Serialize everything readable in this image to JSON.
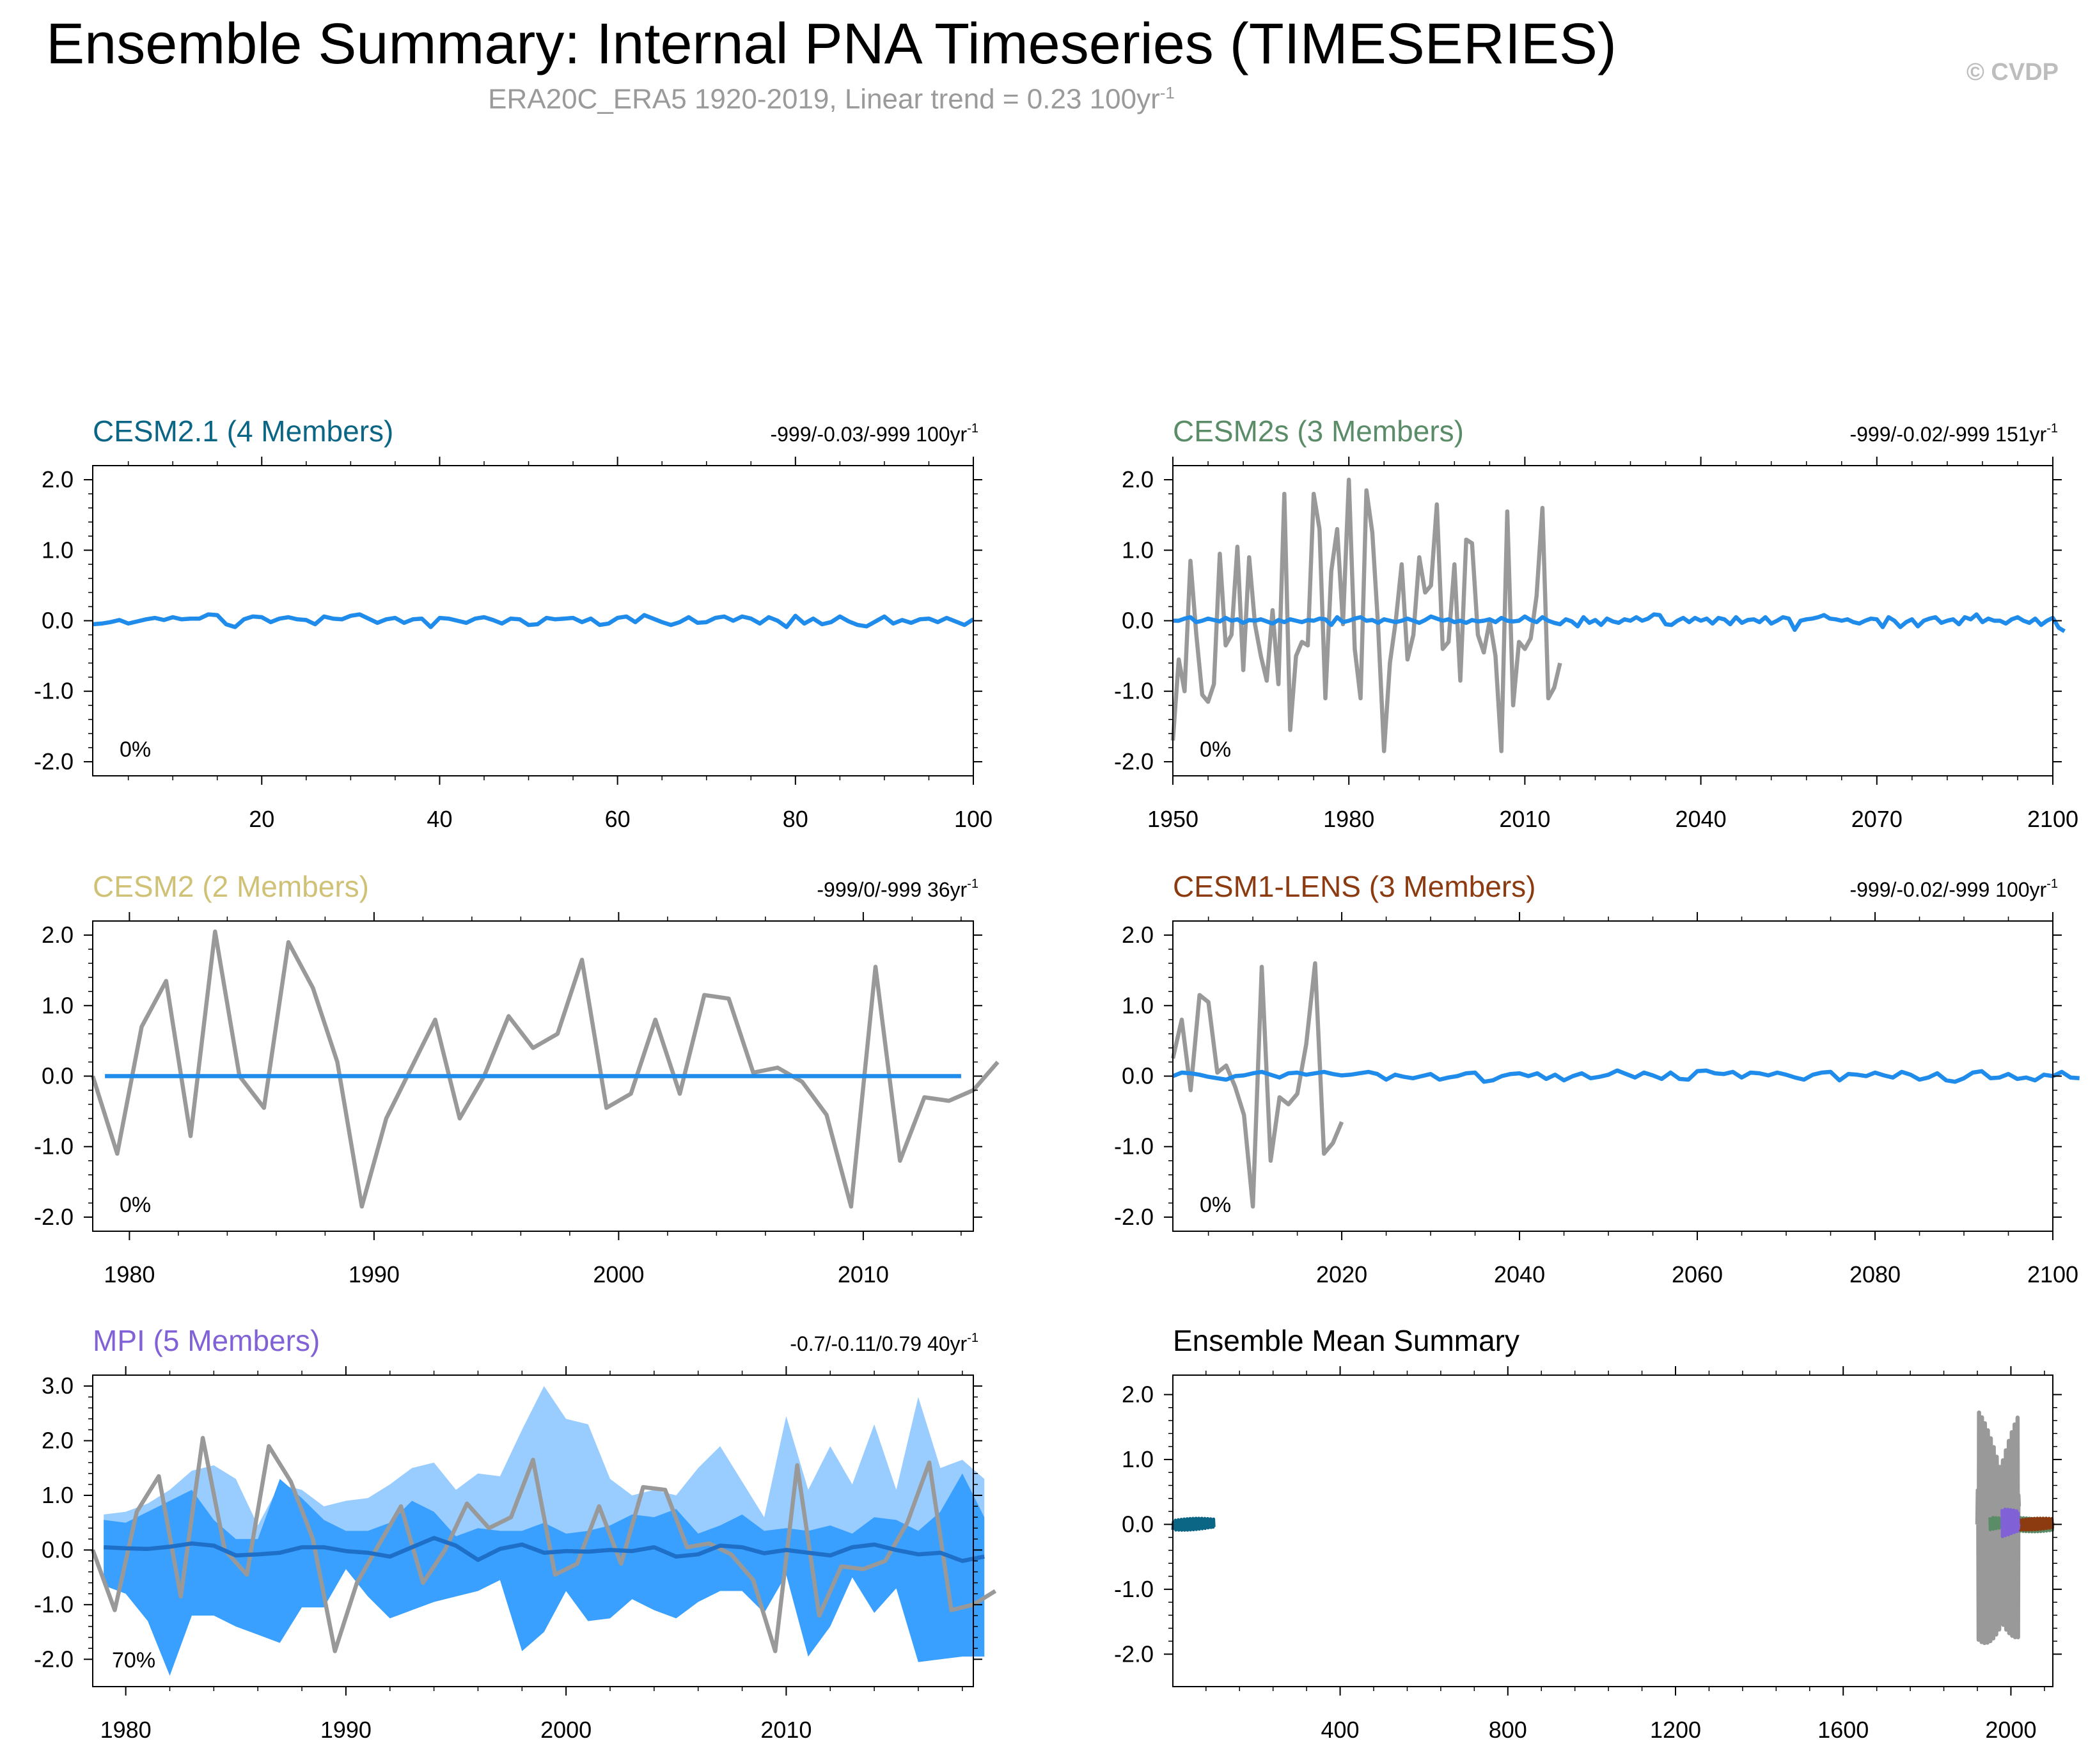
{
  "header": {
    "title": "Ensemble Summary: Internal PNA Timeseries (TIMESERIES)",
    "subtitle": "ERA20C_ERA5 1920-2019, Linear trend = 0.23 100yr",
    "subtitle_sup": "-1",
    "copyright": "© CVDP"
  },
  "colors": {
    "obs": "#999999",
    "ens_mean": "#1f8bea",
    "ens_mean_dark": "#1e6fc8",
    "band_outer": "#99ccff",
    "band_inner": "#3aa0ff",
    "cesm21": "#0b6584",
    "cesm2s": "#5b8c68",
    "cesm2": "#cfc277",
    "cesm1": "#8c3b10",
    "mpi": "#8062d6"
  },
  "chart_data": [
    {
      "type": "line",
      "panel": "CESM2.1",
      "title": "CESM2.1 (4 Members)",
      "stats": "-999/-0.03/-999 100yr",
      "stats_sup": "-1",
      "percent": "0%",
      "xlim": [
        1,
        100
      ],
      "ylim": [
        -2.2,
        2.2
      ],
      "xticks": [
        20,
        40,
        60,
        80,
        100
      ],
      "xtick_labels": [
        "20",
        "40",
        "60",
        "80",
        "100"
      ],
      "yticks": [
        2.0,
        1.0,
        0.0,
        -1.0,
        -2.0
      ],
      "ytick_labels": [
        "2.0",
        "1.0",
        "0.0",
        "-1.0",
        "-2.0"
      ],
      "series": [
        {
          "name": "ensemble mean",
          "color_key": "ens_mean",
          "x_start": 1,
          "x_step": 1,
          "values": [
            -0.05,
            -0.04,
            -0.02,
            0.01,
            -0.04,
            -0.01,
            0.02,
            0.04,
            0.01,
            0.05,
            0.02,
            0.03,
            0.03,
            0.09,
            0.08,
            -0.05,
            -0.09,
            0.02,
            0.06,
            0.05,
            -0.02,
            0.03,
            0.05,
            0.02,
            0.01,
            -0.05,
            0.06,
            0.03,
            0.02,
            0.07,
            0.09,
            0.03,
            -0.03,
            0.02,
            0.04,
            -0.03,
            0.02,
            0.03,
            -0.09,
            0.04,
            0.03,
            0.0,
            -0.03,
            0.03,
            0.05,
            0.01,
            -0.04,
            0.03,
            0.02,
            -0.06,
            -0.05,
            0.04,
            0.02,
            0.03,
            0.04,
            -0.02,
            0.03,
            -0.06,
            -0.04,
            0.04,
            0.06,
            -0.02,
            0.08,
            0.03,
            -0.02,
            -0.06,
            -0.02,
            0.05,
            -0.03,
            -0.02,
            0.04,
            0.06,
            0.0,
            0.06,
            0.03,
            -0.04,
            0.05,
            0.0,
            -0.09,
            0.07,
            -0.04,
            0.03,
            -0.05,
            -0.02,
            0.06,
            -0.01,
            -0.06,
            -0.08,
            -0.01,
            0.06,
            -0.04,
            0.01,
            -0.03,
            0.02,
            0.03,
            -0.02,
            0.04,
            -0.01,
            -0.06,
            0.02
          ]
        }
      ]
    },
    {
      "type": "line",
      "panel": "CESM2s",
      "title": "CESM2s (3 Members)",
      "stats": "-999/-0.02/-999 151yr",
      "stats_sup": "-1",
      "percent": "0%",
      "xlim": [
        1950,
        2100
      ],
      "ylim": [
        -2.2,
        2.2
      ],
      "xticks": [
        1950,
        1980,
        2010,
        2040,
        2070,
        2100
      ],
      "xtick_labels": [
        "1950",
        "1980",
        "2010",
        "2040",
        "2070",
        "2100"
      ],
      "yticks": [
        2.0,
        1.0,
        0.0,
        -1.0,
        -2.0
      ],
      "ytick_labels": [
        "2.0",
        "1.0",
        "0.0",
        "-1.0",
        "-2.0"
      ],
      "series": [
        {
          "name": "observations",
          "color_key": "obs",
          "x_start": 1950,
          "x_step": 1,
          "values": [
            -1.7,
            -0.55,
            -1.0,
            0.85,
            -0.2,
            -1.05,
            -1.15,
            -0.9,
            0.95,
            -0.35,
            -0.2,
            1.05,
            -0.7,
            0.9,
            -0.05,
            -0.5,
            -0.85,
            0.15,
            -0.9,
            1.8,
            -1.55,
            -0.5,
            -0.3,
            -0.35,
            1.8,
            1.3,
            -1.1,
            0.7,
            1.3,
            -0.05,
            2.0,
            -0.4,
            -1.1,
            1.85,
            1.25,
            -0.1,
            -1.85,
            -0.6,
            0.0,
            0.8,
            -0.55,
            -0.2,
            0.9,
            0.4,
            0.5,
            1.65,
            -0.4,
            -0.3,
            0.8,
            -0.85,
            1.15,
            1.1,
            -0.2,
            -0.45,
            0.0,
            -0.5,
            -1.85,
            1.55,
            -1.2,
            -0.3,
            -0.4,
            -0.25,
            0.35,
            1.6,
            -1.1,
            -0.95,
            -0.6
          ]
        },
        {
          "name": "ensemble mean",
          "color_key": "ens_mean",
          "x_start": 1950,
          "x_step": 1,
          "values": [
            0.0,
            0.0,
            0.03,
            0.05,
            -0.02,
            0.0,
            0.03,
            0.01,
            -0.01,
            0.04,
            0.0,
            0.02,
            -0.03,
            0.01,
            0.0,
            0.02,
            -0.01,
            -0.04,
            0.01,
            -0.02,
            0.02,
            0.0,
            -0.02,
            0.01,
            0.0,
            0.03,
            0.02,
            -0.06,
            0.05,
            -0.02,
            0.0,
            0.03,
            0.05,
            0.0,
            0.01,
            -0.03,
            0.02,
            0.0,
            -0.02,
            0.0,
            0.03,
            0.0,
            -0.03,
            0.01,
            0.06,
            0.03,
            0.0,
            0.02,
            -0.02,
            0.0,
            -0.03,
            0.01,
            -0.01,
            0.0,
            0.02,
            -0.02,
            0.04,
            0.0,
            -0.01,
            0.0,
            0.06,
            0.01,
            -0.02,
            0.05,
            0.0,
            -0.03,
            -0.05,
            0.02,
            -0.01,
            -0.08,
            0.05,
            -0.03,
            0.01,
            -0.06,
            0.03,
            -0.01,
            -0.03,
            0.02,
            0.0,
            0.05,
            0.0,
            0.03,
            0.09,
            0.08,
            -0.05,
            -0.06,
            0.0,
            0.04,
            -0.02,
            0.04,
            0.0,
            0.03,
            -0.04,
            0.04,
            0.02,
            -0.05,
            0.05,
            -0.03,
            0.01,
            0.02,
            -0.02,
            0.05,
            -0.04,
            0.0,
            0.05,
            0.03,
            -0.13,
            0.0,
            0.02,
            0.03,
            0.05,
            0.08,
            0.03,
            0.02,
            0.0,
            0.02,
            -0.02,
            -0.04,
            0.0,
            0.03,
            0.02,
            -0.09,
            0.05,
            0.0,
            -0.09,
            -0.02,
            0.02,
            -0.08,
            0.0,
            0.03,
            0.05,
            -0.03,
            0.0,
            0.02,
            -0.05,
            0.05,
            0.02,
            0.09,
            -0.02,
            0.03,
            0.0,
            0.0,
            -0.04,
            0.02,
            0.05,
            0.0,
            -0.03,
            0.03,
            -0.06,
            0.0,
            0.04,
            -0.1,
            -0.15
          ]
        }
      ]
    },
    {
      "type": "line",
      "panel": "CESM2",
      "title": "CESM2 (2 Members)",
      "stats": "-999/0/-999 36yr",
      "stats_sup": "-1",
      "percent": "0%",
      "xlim": [
        1978.5,
        2014.5
      ],
      "ylim": [
        -2.2,
        2.2
      ],
      "xticks": [
        1980,
        1990,
        2000,
        2010
      ],
      "xtick_labels": [
        "1980",
        "1990",
        "2000",
        "2010"
      ],
      "yticks": [
        2.0,
        1.0,
        0.0,
        -1.0,
        -2.0
      ],
      "ytick_labels": [
        "2.0",
        "1.0",
        "0.0",
        "-1.0",
        "-2.0"
      ],
      "series": [
        {
          "name": "observations",
          "color_key": "obs",
          "x_start": 1978.5,
          "x_step": 1,
          "values": [
            0.0,
            -1.1,
            0.7,
            1.35,
            -0.85,
            2.05,
            0.0,
            -0.45,
            1.9,
            1.25,
            0.2,
            -1.85,
            -0.6,
            0.1,
            0.8,
            -0.6,
            0.0,
            0.85,
            0.4,
            0.6,
            1.65,
            -0.45,
            -0.25,
            0.8,
            -0.25,
            1.15,
            1.1,
            0.05,
            0.12,
            -0.08,
            -0.55,
            -1.85,
            1.55,
            -1.2,
            -0.3,
            -0.35,
            -0.2,
            0.2
          ]
        },
        {
          "name": "ensemble mean",
          "color_key": "ens_mean",
          "x_start": 1979,
          "x_step": 1,
          "values": [
            0.0,
            0.0,
            0.0,
            0.0,
            0.0,
            0.0,
            0.0,
            0.0,
            0.0,
            0.0,
            0.0,
            0.0,
            0.0,
            0.0,
            0.0,
            0.0,
            0.0,
            0.0,
            0.0,
            0.0,
            0.0,
            0.0,
            0.0,
            0.0,
            0.0,
            0.0,
            0.0,
            0.0,
            0.0,
            0.0,
            0.0,
            0.0,
            0.0,
            0.0,
            0.0,
            0.0
          ]
        }
      ]
    },
    {
      "type": "line",
      "panel": "CESM1-LENS",
      "title": "CESM1-LENS (3 Members)",
      "stats": "-999/-0.02/-999 100yr",
      "stats_sup": "-1",
      "percent": "0%",
      "xlim": [
        2001,
        2100
      ],
      "ylim": [
        -2.2,
        2.2
      ],
      "xticks": [
        2020,
        2040,
        2060,
        2080,
        2100
      ],
      "xtick_labels": [
        "2020",
        "2040",
        "2060",
        "2080",
        "2100"
      ],
      "yticks": [
        2.0,
        1.0,
        0.0,
        -1.0,
        -2.0
      ],
      "ytick_labels": [
        "2.0",
        "1.0",
        "0.0",
        "-1.0",
        "-2.0"
      ],
      "series": [
        {
          "name": "observations",
          "color_key": "obs",
          "x_start": 2001,
          "x_step": 1,
          "values": [
            0.25,
            0.8,
            -0.2,
            1.15,
            1.05,
            0.05,
            0.15,
            -0.15,
            -0.55,
            -1.85,
            1.55,
            -1.2,
            -0.3,
            -0.4,
            -0.25,
            0.45,
            1.6,
            -1.1,
            -0.95,
            -0.65
          ]
        },
        {
          "name": "ensemble mean",
          "color_key": "ens_mean",
          "x_start": 2001,
          "x_step": 1,
          "values": [
            0.0,
            0.05,
            0.04,
            0.02,
            -0.01,
            -0.03,
            -0.05,
            0.0,
            0.01,
            0.04,
            0.06,
            0.02,
            -0.02,
            0.04,
            0.05,
            0.02,
            0.04,
            0.06,
            0.03,
            0.01,
            0.02,
            0.04,
            0.06,
            0.03,
            -0.05,
            0.02,
            -0.01,
            -0.03,
            0.0,
            0.03,
            -0.05,
            -0.02,
            0.0,
            0.04,
            0.05,
            -0.08,
            -0.06,
            0.0,
            0.03,
            0.04,
            0.0,
            0.04,
            -0.04,
            0.02,
            -0.06,
            0.0,
            0.04,
            -0.03,
            -0.01,
            0.02,
            0.08,
            0.03,
            -0.02,
            0.05,
            0.01,
            -0.04,
            0.05,
            -0.04,
            -0.05,
            0.07,
            0.08,
            0.04,
            0.03,
            0.06,
            -0.02,
            0.05,
            0.04,
            0.01,
            0.05,
            0.02,
            -0.02,
            -0.05,
            0.02,
            0.05,
            0.06,
            -0.06,
            0.03,
            0.02,
            0.0,
            0.05,
            0.01,
            -0.02,
            0.06,
            0.02,
            -0.05,
            -0.02,
            0.04,
            -0.06,
            -0.08,
            -0.03,
            0.05,
            0.07,
            -0.03,
            -0.02,
            0.03,
            -0.04,
            -0.02,
            -0.06,
            0.02,
            0.0,
            0.06,
            -0.02,
            -0.03
          ]
        }
      ]
    },
    {
      "type": "area",
      "panel": "MPI",
      "title": "MPI (5 Members)",
      "stats": "-0.7/-0.11/0.79 40yr",
      "stats_sup": "-1",
      "percent": "70%",
      "xlim": [
        1978.5,
        2018.5
      ],
      "ylim": [
        -2.5,
        3.2
      ],
      "xticks": [
        1980,
        1990,
        2000,
        2010
      ],
      "xtick_labels": [
        "1980",
        "1990",
        "2000",
        "2010"
      ],
      "yticks": [
        3.0,
        2.0,
        1.0,
        0.0,
        -1.0,
        -2.0
      ],
      "ytick_labels": [
        "3.0",
        "2.0",
        "1.0",
        "0.0",
        "-1.0",
        "-2.0"
      ],
      "band_x_start": 1979,
      "band_outer_max": [
        0.65,
        0.7,
        0.85,
        1.1,
        1.45,
        1.55,
        1.3,
        0.45,
        1.2,
        1.1,
        0.8,
        0.9,
        0.95,
        1.2,
        1.5,
        1.6,
        1.1,
        1.4,
        1.35,
        2.2,
        3.0,
        2.4,
        2.3,
        1.3,
        1.0,
        1.1,
        1.0,
        1.5,
        1.9,
        1.25,
        0.6,
        2.45,
        1.1,
        1.9,
        1.2,
        2.3,
        1.1,
        2.8,
        1.5,
        1.65,
        1.3
      ],
      "band_inner_max": [
        0.55,
        0.5,
        0.7,
        0.9,
        1.1,
        0.55,
        0.2,
        0.2,
        1.3,
        0.95,
        0.55,
        0.35,
        0.35,
        0.5,
        0.9,
        0.7,
        0.25,
        0.4,
        0.35,
        0.35,
        0.5,
        0.3,
        0.35,
        0.45,
        0.65,
        0.6,
        0.75,
        0.3,
        0.45,
        0.65,
        0.35,
        0.4,
        0.35,
        0.45,
        0.3,
        0.6,
        0.55,
        0.35,
        0.7,
        1.4,
        0.6
      ],
      "band_inner_min": [
        -0.65,
        -0.8,
        -1.3,
        -2.3,
        -1.2,
        -1.2,
        -1.4,
        -1.55,
        -1.7,
        -1.05,
        -1.05,
        -0.35,
        -0.85,
        -1.25,
        -1.1,
        -0.95,
        -0.85,
        -0.75,
        -0.55,
        -1.85,
        -1.5,
        -0.75,
        -1.3,
        -1.25,
        -0.9,
        -1.1,
        -1.25,
        -0.95,
        -0.75,
        -0.75,
        -1.15,
        -0.45,
        -1.95,
        -1.4,
        -0.5,
        -1.15,
        -0.7,
        -2.05,
        -2.0,
        -1.95,
        -1.95
      ],
      "series": [
        {
          "name": "observations",
          "color_key": "obs",
          "x_start": 1978.5,
          "x_step": 1,
          "values": [
            0.0,
            -1.1,
            0.7,
            1.35,
            -0.85,
            2.05,
            0.0,
            -0.45,
            1.9,
            1.25,
            0.2,
            -1.85,
            -0.6,
            0.1,
            0.8,
            -0.6,
            0.0,
            0.85,
            0.4,
            0.6,
            1.65,
            -0.45,
            -0.25,
            0.8,
            -0.25,
            1.15,
            1.1,
            0.05,
            0.12,
            -0.08,
            -0.55,
            -1.85,
            1.55,
            -1.2,
            -0.3,
            -0.35,
            -0.2,
            0.5,
            1.6,
            -1.1,
            -1.0,
            -0.75
          ]
        },
        {
          "name": "ensemble mean",
          "color_key": "ens_mean_dark",
          "x_start": 1979,
          "x_step": 1,
          "values": [
            0.05,
            0.03,
            0.02,
            0.06,
            0.12,
            0.08,
            -0.1,
            -0.08,
            -0.05,
            0.05,
            0.05,
            -0.02,
            -0.05,
            -0.12,
            0.05,
            0.22,
            0.08,
            -0.18,
            0.02,
            0.1,
            -0.05,
            -0.02,
            -0.03,
            0.0,
            -0.02,
            0.05,
            -0.12,
            -0.08,
            0.08,
            0.05,
            -0.06,
            0.0,
            -0.05,
            -0.1,
            0.05,
            0.1,
            0.0,
            -0.08,
            -0.05,
            -0.2,
            -0.12
          ]
        }
      ]
    },
    {
      "type": "line",
      "panel": "Ensemble Mean Summary",
      "title": "Ensemble Mean Summary",
      "xlim": [
        1,
        2100
      ],
      "ylim": [
        -2.5,
        2.3
      ],
      "xticks": [
        400,
        800,
        1200,
        1600,
        2000
      ],
      "xtick_labels": [
        "400",
        "800",
        "1200",
        "1600",
        "2000"
      ],
      "yticks": [
        2.0,
        1.0,
        0.0,
        -1.0,
        -2.0
      ],
      "ytick_labels": [
        "2.0",
        "1.0",
        "0.0",
        "-1.0",
        "-2.0"
      ],
      "series": [
        {
          "name": "observations ERA20C_ERA5",
          "color_key": "obs",
          "x_start": 1920,
          "x_end": 2019,
          "amplitude": 2.0
        },
        {
          "name": "CESM2.1",
          "color_key": "cesm21",
          "x_start": 1,
          "x_end": 100,
          "amplitude": 0.1
        },
        {
          "name": "CESM2s",
          "color_key": "cesm2s",
          "x_start": 1950,
          "x_end": 2100,
          "amplitude": 0.12
        },
        {
          "name": "CESM2",
          "color_key": "cesm2",
          "x_start": 1979,
          "x_end": 2014,
          "amplitude": 0.02
        },
        {
          "name": "CESM1-LENS",
          "color_key": "cesm1",
          "x_start": 2001,
          "x_end": 2100,
          "amplitude": 0.1
        },
        {
          "name": "MPI",
          "color_key": "mpi",
          "x_start": 1979,
          "x_end": 2019,
          "amplitude": 0.25
        }
      ]
    }
  ]
}
